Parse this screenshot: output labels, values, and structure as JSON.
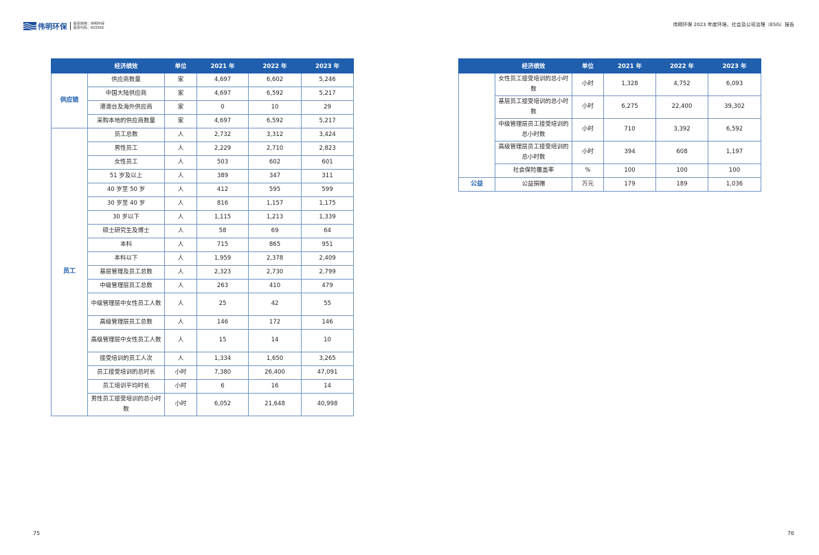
{
  "header": {
    "logo_name": "伟明环保",
    "logo_meta_line1": "股票简称：伟明环保",
    "logo_meta_line2": "股票代码：603568",
    "report_title": "伟明环保 2023 年度环境、社会及公司治理（ESG）报告"
  },
  "columns": [
    "经济绩效",
    "单位",
    "2021 年",
    "2022 年",
    "2023 年"
  ],
  "left_table": {
    "groups": [
      {
        "category": "供应链",
        "rows": [
          {
            "item": "供应商数量",
            "unit": "家",
            "v2021": "4,697",
            "v2022": "6,602",
            "v2023": "5,246"
          },
          {
            "item": "中国大陆供应商",
            "unit": "家",
            "v2021": "4,697",
            "v2022": "6,592",
            "v2023": "5,217"
          },
          {
            "item": "港澳台及海外供应商",
            "unit": "家",
            "v2021": "0",
            "v2022": "10",
            "v2023": "29"
          },
          {
            "item": "采购本地的供应商数量",
            "unit": "家",
            "v2021": "4,697",
            "v2022": "6,592",
            "v2023": "5,217"
          }
        ]
      },
      {
        "category": "员工",
        "rows": [
          {
            "item": "员工总数",
            "unit": "人",
            "v2021": "2,732",
            "v2022": "3,312",
            "v2023": "3,424"
          },
          {
            "item": "男性员工",
            "unit": "人",
            "v2021": "2,229",
            "v2022": "2,710",
            "v2023": "2,823"
          },
          {
            "item": "女性员工",
            "unit": "人",
            "v2021": "503",
            "v2022": "602",
            "v2023": "601"
          },
          {
            "item": "51 岁及以上",
            "unit": "人",
            "v2021": "389",
            "v2022": "347",
            "v2023": "311"
          },
          {
            "item": "40 岁至 50 岁",
            "unit": "人",
            "v2021": "412",
            "v2022": "595",
            "v2023": "599"
          },
          {
            "item": "30 岁至 40 岁",
            "unit": "人",
            "v2021": "816",
            "v2022": "1,157",
            "v2023": "1,175"
          },
          {
            "item": "30 岁以下",
            "unit": "人",
            "v2021": "1,115",
            "v2022": "1,213",
            "v2023": "1,339"
          },
          {
            "item": "硕士研究生及博士",
            "unit": "人",
            "v2021": "58",
            "v2022": "69",
            "v2023": "64"
          },
          {
            "item": "本科",
            "unit": "人",
            "v2021": "715",
            "v2022": "865",
            "v2023": "951"
          },
          {
            "item": "本科以下",
            "unit": "人",
            "v2021": "1,959",
            "v2022": "2,378",
            "v2023": "2,409"
          },
          {
            "item": "基层管理及员工总数",
            "unit": "人",
            "v2021": "2,323",
            "v2022": "2,730",
            "v2023": "2,799"
          },
          {
            "item": "中级管理层员工总数",
            "unit": "人",
            "v2021": "263",
            "v2022": "410",
            "v2023": "479"
          },
          {
            "item": "中级管理层中女性员工人数",
            "unit": "人",
            "v2021": "25",
            "v2022": "42",
            "v2023": "55"
          },
          {
            "item": "高级管理层员工总数",
            "unit": "人",
            "v2021": "146",
            "v2022": "172",
            "v2023": "146"
          },
          {
            "item": "高级管理层中女性员工人数",
            "unit": "人",
            "v2021": "15",
            "v2022": "14",
            "v2023": "10"
          },
          {
            "item": "接受培训的员工人次",
            "unit": "人",
            "v2021": "1,334",
            "v2022": "1,650",
            "v2023": "3,265"
          },
          {
            "item": "员工接受培训的总时长",
            "unit": "小时",
            "v2021": "7,380",
            "v2022": "26,400",
            "v2023": "47,091"
          },
          {
            "item": "员工培训平均时长",
            "unit": "小时",
            "v2021": "6",
            "v2022": "16",
            "v2023": "14"
          },
          {
            "item": "男性员工接受培训的总小时数",
            "unit": "小时",
            "v2021": "6,052",
            "v2022": "21,648",
            "v2023": "40,998"
          }
        ]
      }
    ]
  },
  "right_table": {
    "groups": [
      {
        "category": "",
        "rows": [
          {
            "item": "女性员工接受培训的总小时数",
            "unit": "小时",
            "v2021": "1,328",
            "v2022": "4,752",
            "v2023": "6,093"
          },
          {
            "item": "基层员工接受培训的总小时数",
            "unit": "小时",
            "v2021": "6,275",
            "v2022": "22,400",
            "v2023": "39,302"
          },
          {
            "item": "中级管理层员工接受培训的总小时数",
            "unit": "小时",
            "v2021": "710",
            "v2022": "3,392",
            "v2023": "6,592"
          },
          {
            "item": "高级管理层员工接受培训的总小时数",
            "unit": "小时",
            "v2021": "394",
            "v2022": "608",
            "v2023": "1,197"
          },
          {
            "item": "社会保险覆盖率",
            "unit": "%",
            "v2021": "100",
            "v2022": "100",
            "v2023": "100"
          }
        ]
      },
      {
        "category": "公益",
        "rows": [
          {
            "item": "公益捐赠",
            "unit": "万元",
            "v2021": "179",
            "v2022": "189",
            "v2023": "1,036"
          }
        ]
      }
    ]
  },
  "footer": {
    "page_left": "75",
    "page_right": "76"
  },
  "colors": {
    "header_blue": "#1f5fae",
    "border_blue": "#6f93c4"
  }
}
